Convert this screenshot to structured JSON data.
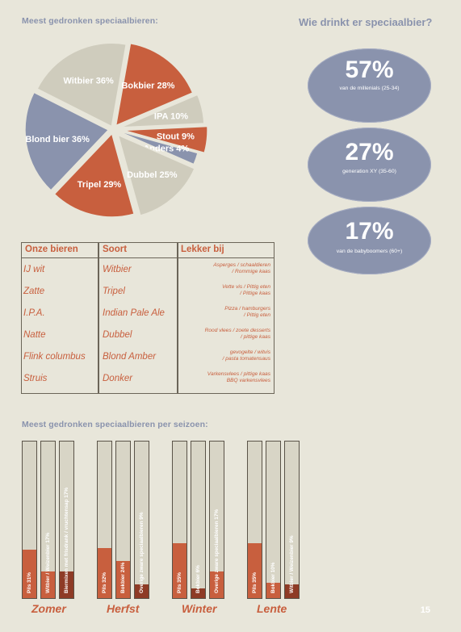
{
  "pie_title": "Meest gedronken speciaalbieren:",
  "right_title": "Wie drinkt er speciaalbier?",
  "demographics": [
    {
      "pct": "57%",
      "label": "van de millenials (25-34)"
    },
    {
      "pct": "27%",
      "label": "generation XY (35-60)"
    },
    {
      "pct": "17%",
      "label": "van de babyboomers (60+)"
    }
  ],
  "table": {
    "headers": [
      "Onze bieren",
      "Soort",
      "Lekker bij"
    ],
    "rows": [
      {
        "bier": "IJ wit",
        "soort": "Witbier",
        "lekker": [
          "Asperges / schaaldieren",
          "/ Rommige kaas"
        ]
      },
      {
        "bier": "Zatte",
        "soort": "Tripel",
        "lekker": [
          "Vette vis / Pittig eten",
          "/ Pittige kaas"
        ]
      },
      {
        "bier": "I.P.A.",
        "soort": "Indian Pale Ale",
        "lekker": [
          "Pizza / hamburgers",
          "/ Pittig eten"
        ]
      },
      {
        "bier": "Natte",
        "soort": "Dubbel",
        "lekker": [
          "Rood vlees / zoete desserts",
          "/ pittige kaas"
        ]
      },
      {
        "bier": "Flink columbus",
        "soort": "Blond Amber",
        "lekker": [
          "gevogelte / witvis",
          "/ pasta tomatensaus"
        ]
      },
      {
        "bier": "Struis",
        "soort": "Donker",
        "lekker": [
          "Varkensvlees / pittige kaas",
          "BBQ varkensvlees"
        ]
      }
    ]
  },
  "season_title": "Meest gedronken speciaalbieren per seizoen:",
  "page_number": "15",
  "colors": {
    "orange": "#c85f3e",
    "blue": "#8a93ad",
    "beige": "#cfccbd",
    "dark_red": "#8e3b26"
  },
  "chart_data": [
    {
      "type": "pie",
      "title": "Meest gedronken speciaalbieren:",
      "slices": [
        {
          "label": "Bokbier 28%",
          "value": 28,
          "color": "#c85f3e"
        },
        {
          "label": "IPA 10%",
          "value": 10,
          "color": "#cfccbd"
        },
        {
          "label": "Stout 9%",
          "value": 9,
          "color": "#c85f3e"
        },
        {
          "label": "Anders 4%",
          "value": 4,
          "color": "#8a93ad"
        },
        {
          "label": "Dubbel 25%",
          "value": 25,
          "color": "#cfccbd"
        },
        {
          "label": "Tripel 29%",
          "value": 29,
          "color": "#c85f3e"
        },
        {
          "label": "Blond bier 36%",
          "value": 36,
          "color": "#8a93ad"
        },
        {
          "label": "Witbier 36%",
          "value": 36,
          "color": "#cfccbd"
        }
      ]
    },
    {
      "type": "bar",
      "title": "Meest gedronken speciaalbieren per seizoen:",
      "ylim": [
        0,
        100
      ],
      "groups": [
        {
          "season": "Zomer",
          "bars": [
            {
              "label": "Pils 31%",
              "value": 31,
              "color": "#c85f3e"
            },
            {
              "label": "Witbier / Weizenbier 17%",
              "value": 17,
              "color": "#c85f3e"
            },
            {
              "label": "Biermixen met frisdrank / vruchtensap 17%",
              "value": 17,
              "color": "#8e3b26"
            }
          ]
        },
        {
          "season": "Herfst",
          "bars": [
            {
              "label": "Pils 32%",
              "value": 32,
              "color": "#c85f3e"
            },
            {
              "label": "Bokbier 24%",
              "value": 24,
              "color": "#c85f3e"
            },
            {
              "label": "Overige zware speciaalbieren 9%",
              "value": 9,
              "color": "#8e3b26"
            }
          ]
        },
        {
          "season": "Winter",
          "bars": [
            {
              "label": "Pils 35%",
              "value": 35,
              "color": "#c85f3e"
            },
            {
              "label": "Bokbier 6%",
              "value": 6,
              "color": "#8e3b26"
            },
            {
              "label": "Overige zware speciaalbieren 17%",
              "value": 17,
              "color": "#c85f3e"
            }
          ]
        },
        {
          "season": "Lente",
          "bars": [
            {
              "label": "Pils 35%",
              "value": 35,
              "color": "#c85f3e"
            },
            {
              "label": "Bokbier 10%",
              "value": 10,
              "color": "#c85f3e"
            },
            {
              "label": "Witbier / Weizenbier 9%",
              "value": 9,
              "color": "#8e3b26"
            }
          ]
        }
      ]
    }
  ]
}
